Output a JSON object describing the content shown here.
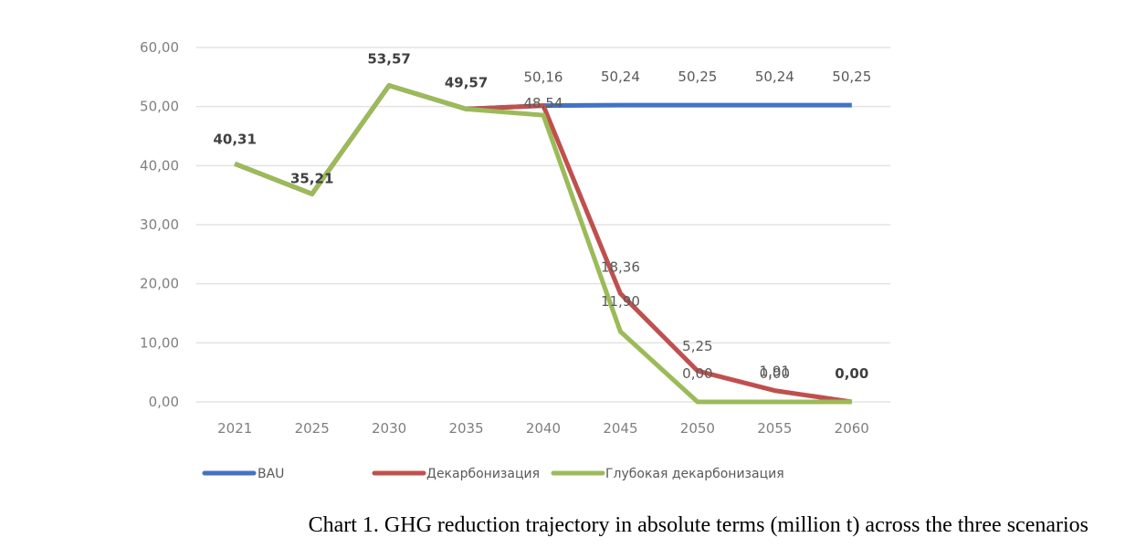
{
  "chart_data": {
    "type": "line",
    "title": "",
    "xlabel": "",
    "ylabel": "",
    "categories": [
      "2021",
      "2025",
      "2030",
      "2035",
      "2040",
      "2045",
      "2050",
      "2055",
      "2060"
    ],
    "ylim": [
      0,
      60
    ],
    "yticks": [
      0,
      10,
      20,
      30,
      40,
      50,
      60
    ],
    "ytick_labels": [
      "0,00",
      "10,00",
      "20,00",
      "30,00",
      "40,00",
      "50,00",
      "60,00"
    ],
    "grid": true,
    "legend_position": "bottom",
    "series": [
      {
        "name": "BAU",
        "color": "#4472c4",
        "values": [
          40.31,
          35.21,
          53.57,
          49.57,
          50.16,
          50.24,
          50.25,
          50.24,
          50.25
        ],
        "labels": [
          "40,31",
          "35,21",
          "53,57",
          "49,57",
          "50,16",
          "50,24",
          "50,25",
          "50,24",
          "50,25"
        ]
      },
      {
        "name": "Декарбонизация",
        "color": "#c0504d",
        "values": [
          40.31,
          35.21,
          53.57,
          49.57,
          50.16,
          18.36,
          5.25,
          1.91,
          0.0
        ],
        "labels": [
          "",
          "",
          "",
          "",
          "",
          "18,36",
          "5,25",
          "1,91",
          ""
        ]
      },
      {
        "name": "Глубокая декарбонизация",
        "color": "#9bbb59",
        "values": [
          40.31,
          35.21,
          53.57,
          49.57,
          48.54,
          11.9,
          0.0,
          0.0,
          0.0
        ],
        "labels": [
          "",
          "",
          "",
          "",
          "48,54",
          "11,90",
          "0,00",
          "0,00",
          "0,00"
        ]
      }
    ]
  },
  "caption": "Chart 1. GHG reduction trajectory in absolute terms (million t) across the three scenarios"
}
